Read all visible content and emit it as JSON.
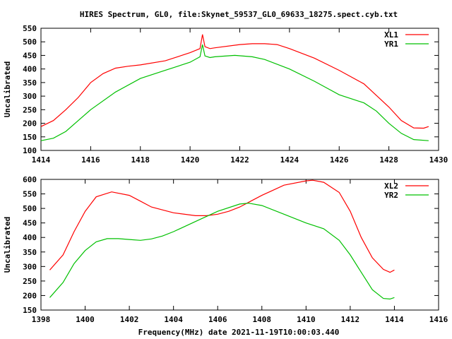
{
  "title": "HIRES Spectrum, GL0, file:Skynet_59537_GL0_69633_18275.spect.cyb.txt",
  "xlabel": "Frequency(MHz) date 2021-11-19T10:00:03.440",
  "chart_data": [
    {
      "type": "line",
      "ylabel": "Uncalibrated",
      "xlim": [
        1414,
        1430
      ],
      "ylim": [
        100,
        550
      ],
      "xticks": [
        "1414",
        "1416",
        "1418",
        "1420",
        "1422",
        "1424",
        "1426",
        "1428",
        "1430"
      ],
      "yticks": [
        "100",
        "150",
        "200",
        "250",
        "300",
        "350",
        "400",
        "450",
        "500",
        "550"
      ],
      "legend": "top-right",
      "series": [
        {
          "name": "XL1",
          "color": "#ff0000",
          "x": [
            1414,
            1414.5,
            1415,
            1415.5,
            1416,
            1416.5,
            1417,
            1417.5,
            1418,
            1419,
            1420,
            1420.4,
            1420.5,
            1420.6,
            1420.8,
            1421,
            1422,
            1422.5,
            1423,
            1423.5,
            1424,
            1425,
            1426,
            1427,
            1428,
            1428.5,
            1429,
            1429.4,
            1429.6
          ],
          "y": [
            188,
            210,
            250,
            295,
            350,
            383,
            403,
            410,
            415,
            430,
            460,
            475,
            527,
            482,
            475,
            478,
            490,
            493,
            493,
            490,
            475,
            440,
            395,
            345,
            260,
            210,
            183,
            182,
            188
          ]
        },
        {
          "name": "YR1",
          "color": "#00c000",
          "x": [
            1414,
            1414.5,
            1415,
            1415.5,
            1416,
            1417,
            1418,
            1419,
            1420,
            1420.4,
            1420.5,
            1420.6,
            1420.8,
            1421,
            1421.8,
            1422.5,
            1423,
            1424,
            1425,
            1425.6,
            1426,
            1427,
            1427.5,
            1428,
            1428.5,
            1429,
            1429.6
          ],
          "y": [
            136,
            145,
            170,
            210,
            250,
            315,
            365,
            395,
            425,
            445,
            490,
            448,
            442,
            445,
            450,
            445,
            435,
            400,
            355,
            325,
            305,
            275,
            245,
            200,
            163,
            140,
            136
          ]
        }
      ]
    },
    {
      "type": "line",
      "ylabel": "Uncalibrated",
      "xlim": [
        1398,
        1416
      ],
      "ylim": [
        150,
        600
      ],
      "xticks": [
        "1398",
        "1400",
        "1402",
        "1404",
        "1406",
        "1408",
        "1410",
        "1412",
        "1414",
        "1416"
      ],
      "yticks": [
        "150",
        "200",
        "250",
        "300",
        "350",
        "400",
        "450",
        "500",
        "550",
        "600"
      ],
      "legend": "top-right",
      "series": [
        {
          "name": "XL2",
          "color": "#ff0000",
          "x": [
            1398.4,
            1399,
            1399.5,
            1400,
            1400.5,
            1401.2,
            1402,
            1402.5,
            1403,
            1404,
            1405,
            1405.5,
            1406,
            1406.5,
            1407,
            1407.5,
            1408,
            1409,
            1410,
            1410.3,
            1410.8,
            1411.5,
            1412,
            1412.5,
            1413,
            1413.5,
            1413.8,
            1414
          ],
          "y": [
            288,
            340,
            420,
            490,
            540,
            557,
            545,
            525,
            505,
            485,
            475,
            475,
            480,
            490,
            505,
            525,
            545,
            580,
            595,
            597,
            590,
            555,
            490,
            400,
            330,
            290,
            280,
            288
          ]
        },
        {
          "name": "YR2",
          "color": "#00c000",
          "x": [
            1398.4,
            1399,
            1399.5,
            1400,
            1400.5,
            1401,
            1401.5,
            1402,
            1402.5,
            1403,
            1403.5,
            1404,
            1405,
            1406,
            1407,
            1407.4,
            1408,
            1409,
            1410,
            1410.8,
            1411.5,
            1412,
            1412.5,
            1413,
            1413.5,
            1413.8,
            1414
          ],
          "y": [
            193,
            245,
            310,
            355,
            385,
            396,
            396,
            393,
            390,
            395,
            405,
            420,
            455,
            490,
            515,
            518,
            510,
            480,
            450,
            430,
            390,
            340,
            280,
            220,
            190,
            188,
            193
          ]
        }
      ]
    }
  ]
}
